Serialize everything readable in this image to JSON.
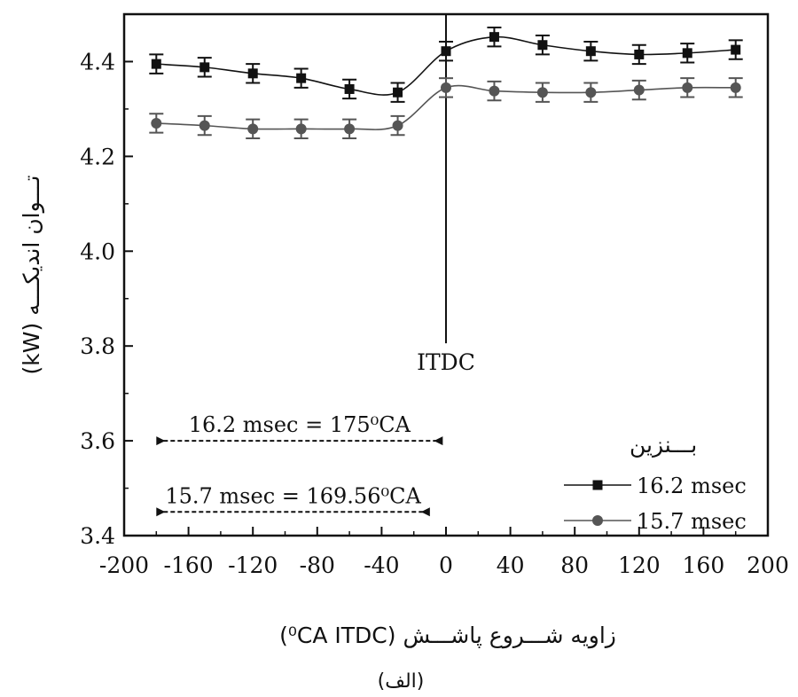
{
  "chart_data": {
    "type": "line",
    "xlabel": "زاویه شـــروع پاشـــش (⁰CA ITDC)",
    "ylabel": "تـــوان اندیکـــه (kW)",
    "caption": "(الف)",
    "xlim": [
      -200,
      200
    ],
    "ylim": [
      3.4,
      4.5
    ],
    "xticks": [
      -200,
      -160,
      -120,
      -80,
      -40,
      0,
      40,
      80,
      120,
      160,
      200
    ],
    "yticks": [
      3.4,
      3.6,
      3.8,
      4.0,
      4.2,
      4.4
    ],
    "x": [
      -180,
      -150,
      -120,
      -90,
      -60,
      -30,
      0,
      30,
      60,
      90,
      120,
      150,
      180
    ],
    "series": [
      {
        "name": "16.2 msec",
        "marker": "square",
        "color": "#111111",
        "values": [
          4.395,
          4.388,
          4.375,
          4.365,
          4.342,
          4.335,
          4.422,
          4.452,
          4.435,
          4.422,
          4.415,
          4.418,
          4.425
        ],
        "error": 0.02
      },
      {
        "name": "15.7 msec",
        "marker": "circle",
        "color": "#555555",
        "values": [
          4.27,
          4.265,
          4.258,
          4.258,
          4.258,
          4.265,
          4.345,
          4.338,
          4.335,
          4.335,
          4.34,
          4.345,
          4.345
        ],
        "error": 0.02
      }
    ],
    "legend": {
      "title": "بـــنزین",
      "position": "bottom-right"
    },
    "vline": {
      "x": 0,
      "label": "ITDC"
    },
    "annotations": [
      {
        "text": "16.2 msec = 175⁰CA",
        "x_start": -180,
        "x_end": -2,
        "y": 3.6
      },
      {
        "text": "15.7 msec = 169.56⁰CA",
        "x_start": -180,
        "x_end": -10,
        "y": 3.45
      }
    ]
  }
}
